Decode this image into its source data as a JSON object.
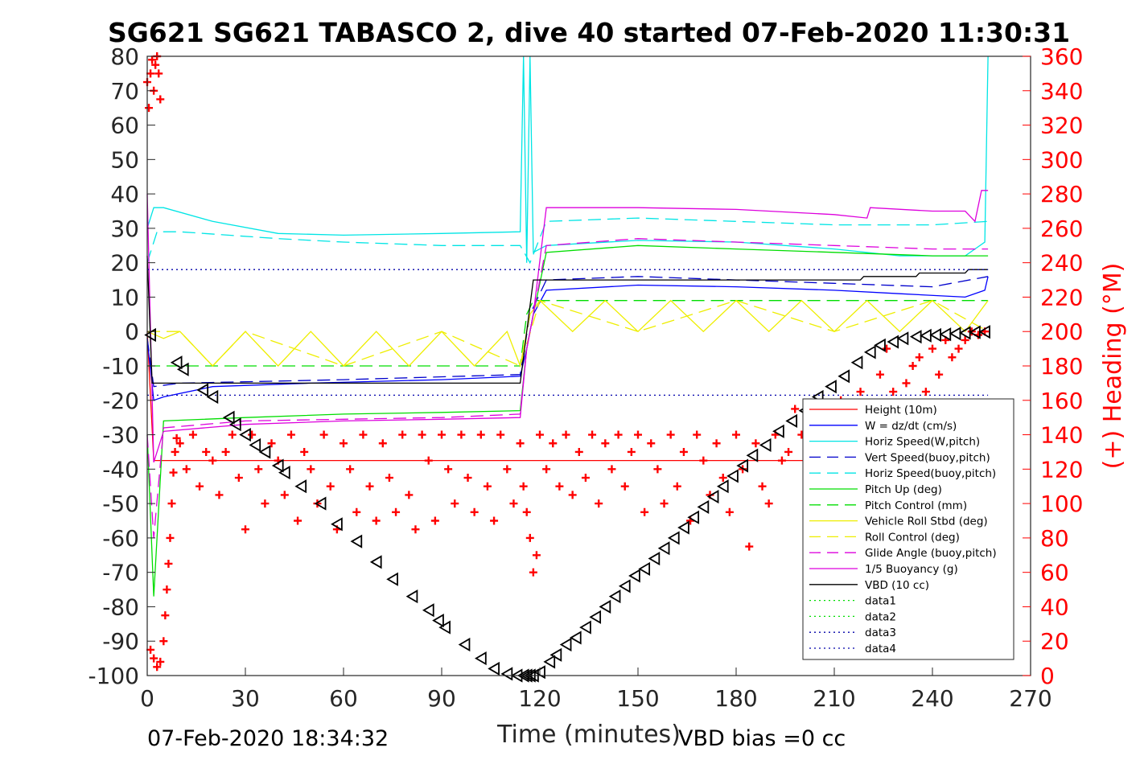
{
  "chart_data": {
    "type": "line",
    "title": "SG621 SG621 TABASCO 2, dive 40 started 07-Feb-2020 11:30:31",
    "xlabel": "Time (minutes)",
    "ylabel_right": "(+) Heading (°M)",
    "xlim": [
      0,
      270
    ],
    "ylim_left": [
      -100,
      80
    ],
    "ylim_right": [
      0,
      360
    ],
    "xticks": [
      "0",
      "30",
      "60",
      "90",
      "120",
      "150",
      "180",
      "210",
      "240",
      "270"
    ],
    "yticks_left": [
      "80",
      "70",
      "60",
      "50",
      "40",
      "30",
      "20",
      "10",
      "0",
      "-10",
      "-20",
      "-30",
      "-40",
      "-50",
      "-60",
      "-70",
      "-80",
      "-90",
      "-100"
    ],
    "yticks_right": [
      "360",
      "340",
      "320",
      "300",
      "280",
      "260",
      "240",
      "220",
      "200",
      "180",
      "160",
      "140",
      "120",
      "100",
      "80",
      "60",
      "40",
      "20",
      "0"
    ],
    "footer_left": "07-Feb-2020 18:34:32",
    "footer_right": "VBD bias =0 cc",
    "legend_placement": "lower-right",
    "grid": false,
    "series": [
      {
        "name": "Height (10m)",
        "color": "#ff0000",
        "style": "solid",
        "x": [
          0,
          2,
          2.5,
          3,
          257
        ],
        "y": [
          0,
          -37.5,
          -37.5,
          -37.5,
          -37.5
        ]
      },
      {
        "name": "W = dz/dt (cm/s)",
        "color": "#0000ff",
        "style": "solid",
        "x": [
          0,
          2,
          5,
          20,
          50,
          90,
          114,
          116,
          118,
          122,
          150,
          180,
          210,
          230,
          250,
          256,
          257
        ],
        "y": [
          -2,
          -20,
          -19,
          -16,
          -15,
          -14,
          -13,
          -5,
          5,
          12,
          13.5,
          13,
          12,
          11,
          10,
          12,
          16
        ]
      },
      {
        "name": "Horiz Speed(W,pitch)",
        "color": "#00e5e5",
        "style": "solid",
        "x": [
          0,
          2,
          5,
          20,
          40,
          60,
          90,
          114,
          115,
          116,
          117,
          118,
          122,
          150,
          180,
          210,
          230,
          250,
          256,
          257
        ],
        "y": [
          30,
          36,
          36,
          32,
          28.5,
          28,
          28.5,
          29,
          80,
          20,
          80,
          23,
          25,
          26.5,
          26,
          24,
          22,
          22,
          26,
          80
        ]
      },
      {
        "name": "Vert Speed(buoy,pitch)",
        "color": "#0000cc",
        "style": "dashed",
        "x": [
          0,
          2,
          10,
          60,
          114,
          117,
          122,
          150,
          180,
          210,
          240,
          257
        ],
        "y": [
          -2,
          -16,
          -15,
          -14,
          -12.5,
          5,
          15,
          16,
          15,
          14,
          13,
          16
        ]
      },
      {
        "name": "Horiz Speed(buoy,pitch)",
        "color": "#00e5e5",
        "style": "dashed",
        "x": [
          0,
          3,
          10,
          40,
          60,
          90,
          114,
          117,
          122,
          150,
          180,
          210,
          240,
          257
        ],
        "y": [
          20,
          29,
          29,
          27,
          26,
          25,
          25,
          20,
          32,
          33,
          32,
          31,
          31,
          32
        ]
      },
      {
        "name": "Pitch Up (deg)",
        "color": "#00dd00",
        "style": "solid",
        "x": [
          0,
          2,
          5,
          30,
          60,
          90,
          114,
          116,
          118,
          122,
          150,
          180,
          210,
          240,
          257
        ],
        "y": [
          -30,
          -77,
          -26,
          -25,
          -24,
          -23.5,
          -23,
          -5,
          5,
          23,
          25,
          24,
          23,
          22,
          22
        ]
      },
      {
        "name": "Pitch Control (mm)",
        "color": "#00dd00",
        "style": "dashed",
        "x": [
          0,
          2,
          114,
          116,
          118,
          257
        ],
        "y": [
          -10,
          -10,
          -10,
          5,
          9,
          9
        ]
      },
      {
        "name": "Vehicle Roll Stbd (deg)",
        "color": "#eeee00",
        "style": "solid",
        "x": [
          0,
          5,
          10,
          20,
          30,
          40,
          50,
          60,
          70,
          80,
          90,
          100,
          110,
          114,
          117,
          120,
          130,
          140,
          150,
          160,
          170,
          180,
          190,
          200,
          210,
          220,
          230,
          240,
          250,
          257
        ],
        "y": [
          0,
          -2,
          0,
          -10,
          0,
          -10,
          0,
          -10,
          0,
          -10,
          0,
          -10,
          0,
          -10,
          5,
          9,
          0,
          9,
          0,
          9,
          0,
          9,
          0,
          9,
          0,
          9,
          0,
          9,
          0,
          9
        ]
      },
      {
        "name": "Roll Control (deg)",
        "color": "#eeee00",
        "style": "dashed",
        "x": [
          0,
          10,
          20,
          30,
          60,
          90,
          114,
          120,
          150,
          180,
          210,
          240,
          257
        ],
        "y": [
          0,
          0,
          -10,
          0,
          -10,
          0,
          -10,
          9,
          0,
          9,
          0,
          9,
          0
        ]
      },
      {
        "name": "Glide Angle (buoy,pitch)",
        "color": "#dd00dd",
        "style": "dashed",
        "x": [
          0,
          2,
          5,
          30,
          60,
          90,
          114,
          116,
          118,
          122,
          150,
          180,
          210,
          240,
          257
        ],
        "y": [
          -30,
          -60,
          -28,
          -26,
          -25.5,
          -25,
          -24,
          -5,
          5,
          25,
          27,
          26,
          25,
          24,
          24
        ]
      },
      {
        "name": "1/5 Buoyancy (g)",
        "color": "#dd00dd",
        "style": "solid",
        "x": [
          0,
          2,
          5,
          30,
          60,
          90,
          114,
          116,
          118,
          122,
          150,
          180,
          210,
          220,
          221,
          240,
          250,
          253,
          255,
          257
        ],
        "y": [
          40,
          -38,
          -29,
          -27,
          -26,
          -25.5,
          -25,
          -5,
          5,
          36,
          36,
          35.5,
          34,
          33,
          36,
          35,
          35,
          32,
          41,
          41
        ]
      },
      {
        "name": "VBD (10 cc)",
        "color": "#000000",
        "style": "solid",
        "x": [
          0,
          1.5,
          2,
          114,
          116,
          118,
          180,
          218,
          219,
          235,
          236,
          250,
          251,
          257
        ],
        "y": [
          22,
          -15,
          -15,
          -15,
          0,
          15,
          15,
          15,
          16,
          16,
          17,
          17,
          18,
          18
        ]
      },
      {
        "name": "data1",
        "color": "#00dd00",
        "style": "dotted",
        "x": [],
        "y": []
      },
      {
        "name": "data2",
        "color": "#00dd00",
        "style": "dotted",
        "x": [],
        "y": []
      },
      {
        "name": "data3",
        "color": "#0000aa",
        "style": "dotted",
        "x": [
          0,
          257
        ],
        "y": [
          -18.5,
          -18.5
        ]
      },
      {
        "name": "data4",
        "color": "#0000aa",
        "style": "dotted",
        "x": [
          0,
          257
        ],
        "y": [
          18,
          18
        ]
      }
    ],
    "depth_markers": {
      "color": "#000000",
      "x": [
        1,
        9,
        11,
        17,
        20,
        25,
        27,
        30,
        33,
        36,
        40,
        42,
        47,
        53,
        58,
        64,
        70,
        75,
        81,
        86,
        89,
        91,
        97,
        102,
        106,
        110,
        113,
        115,
        116,
        117,
        118,
        120,
        123,
        125,
        128,
        131,
        134,
        137,
        140,
        143,
        146,
        149,
        152,
        155,
        158,
        161,
        164,
        167,
        170,
        173,
        176,
        179,
        182,
        185,
        189,
        193,
        197,
        201,
        205,
        209,
        213,
        217,
        221,
        224,
        228,
        231,
        235,
        238,
        241,
        244,
        247,
        250,
        253,
        256
      ],
      "y": [
        -1,
        -9,
        -11,
        -17,
        -19,
        -25,
        -27,
        -30,
        -33,
        -35,
        -39,
        -41,
        -45,
        -50,
        -56,
        -61,
        -67,
        -72,
        -77,
        -81,
        -84,
        -86,
        -91,
        -95,
        -98,
        -99.5,
        -100,
        -100,
        -100,
        -100,
        -100,
        -99,
        -96,
        -94,
        -91,
        -89,
        -86,
        -83,
        -80,
        -77,
        -74,
        -71,
        -69,
        -66,
        -63,
        -60,
        -57,
        -54,
        -51,
        -48,
        -45,
        -42,
        -39,
        -36,
        -33,
        -29,
        -26,
        -23,
        -19,
        -16,
        -13,
        -9,
        -6,
        -4,
        -3,
        -2,
        -1.5,
        -1.2,
        -1,
        -0.8,
        -0.6,
        -0.4,
        -0.2,
        -0.1
      ]
    },
    "heading_points": {
      "name": "(+) Heading",
      "color": "#ff0000",
      "axis": "right",
      "x": [
        0,
        0.5,
        1,
        1.5,
        2,
        2.5,
        3,
        3.5,
        4,
        1,
        2,
        3,
        4,
        5,
        5.5,
        6,
        6.5,
        7,
        7.5,
        8,
        8.5,
        9,
        10,
        12,
        14,
        16,
        18,
        20,
        22,
        24,
        26,
        28,
        30,
        32,
        34,
        36,
        38,
        40,
        42,
        44,
        46,
        48,
        50,
        52,
        54,
        56,
        58,
        60,
        62,
        64,
        66,
        68,
        70,
        72,
        74,
        76,
        78,
        80,
        82,
        84,
        86,
        88,
        90,
        92,
        94,
        96,
        98,
        100,
        102,
        104,
        106,
        108,
        110,
        112,
        114,
        115,
        116,
        117,
        118,
        119,
        120,
        122,
        124,
        126,
        128,
        130,
        132,
        134,
        136,
        138,
        140,
        142,
        144,
        146,
        148,
        150,
        152,
        154,
        156,
        158,
        160,
        162,
        164,
        166,
        168,
        170,
        172,
        174,
        176,
        178,
        180,
        182,
        184,
        186,
        188,
        190,
        192,
        194,
        196,
        198,
        200,
        202,
        204,
        206,
        208,
        210,
        212,
        214,
        216,
        218,
        220,
        222,
        224,
        226,
        228,
        230,
        232,
        234,
        236,
        238,
        240,
        242,
        244,
        246,
        248,
        250,
        252,
        254,
        256
      ],
      "y": [
        345,
        330,
        350,
        358,
        340,
        355,
        360,
        350,
        335,
        15,
        10,
        5,
        8,
        20,
        35,
        50,
        65,
        80,
        100,
        118,
        130,
        138,
        135,
        120,
        140,
        110,
        130,
        125,
        105,
        130,
        140,
        115,
        85,
        140,
        120,
        100,
        135,
        125,
        105,
        140,
        90,
        130,
        120,
        100,
        140,
        110,
        85,
        135,
        120,
        95,
        140,
        110,
        90,
        135,
        115,
        95,
        140,
        105,
        85,
        140,
        125,
        90,
        140,
        120,
        100,
        140,
        115,
        95,
        140,
        110,
        90,
        140,
        120,
        100,
        135,
        110,
        95,
        80,
        60,
        70,
        140,
        120,
        135,
        110,
        140,
        105,
        130,
        115,
        140,
        100,
        135,
        120,
        140,
        110,
        130,
        140,
        95,
        135,
        120,
        100,
        140,
        110,
        130,
        90,
        140,
        125,
        105,
        135,
        115,
        95,
        140,
        120,
        75,
        135,
        110,
        100,
        140,
        125,
        130,
        155,
        140,
        90,
        155,
        135,
        120,
        145,
        160,
        130,
        150,
        165,
        140,
        155,
        175,
        190,
        165,
        150,
        170,
        180,
        185,
        165,
        190,
        175,
        195,
        185,
        190,
        195,
        200,
        198,
        200
      ]
    }
  }
}
